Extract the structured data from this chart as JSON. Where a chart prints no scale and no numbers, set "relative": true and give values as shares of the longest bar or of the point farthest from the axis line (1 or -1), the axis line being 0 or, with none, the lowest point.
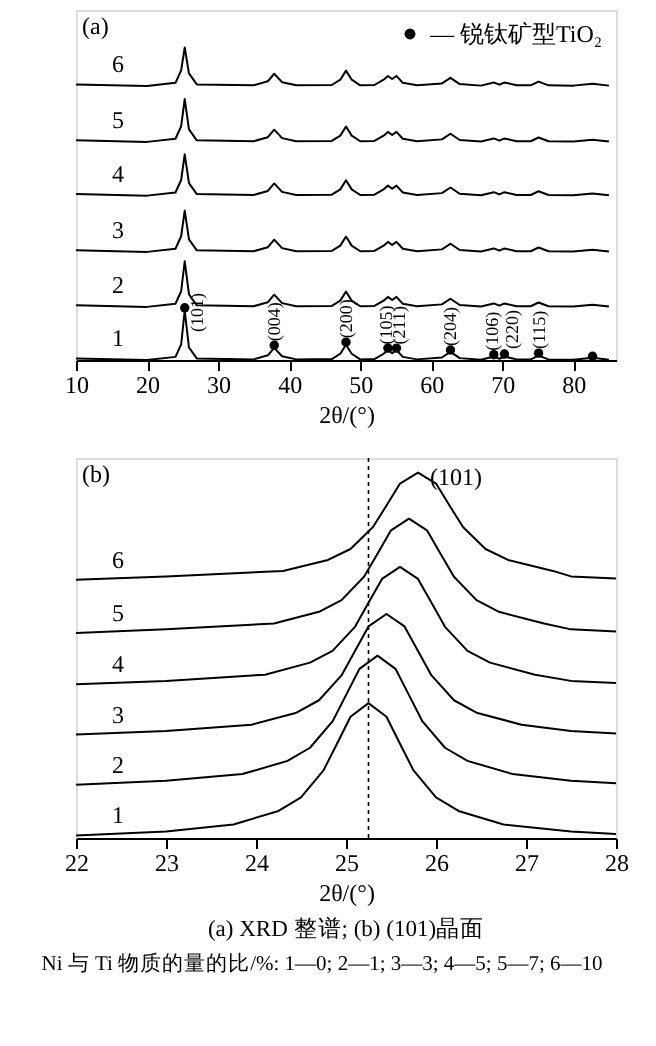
{
  "chart_data": [
    {
      "type": "line",
      "title": "(a)",
      "xlabel": "2θ/(°)",
      "relative": true,
      "xlim": [
        10,
        86
      ],
      "xticks": [
        10,
        20,
        30,
        40,
        50,
        60,
        70,
        80
      ],
      "grid": false,
      "legend": "top right",
      "x": [
        10,
        20,
        24,
        24.8,
        25.3,
        25.9,
        27,
        35,
        37,
        37.9,
        39,
        41,
        46,
        47.2,
        48,
        48.8,
        50,
        52,
        53.3,
        53.9,
        54.5,
        55.1,
        56,
        58,
        61.5,
        62.7,
        64,
        67,
        68.8,
        69.6,
        70.3,
        72,
        74,
        75.1,
        76.5,
        80,
        82.7,
        85
      ],
      "series": [
        {
          "name": "1",
          "color": "#000000",
          "values": [
            0.005,
            0,
            0.01,
            0.05,
            0.158,
            0.04,
            0.005,
            0.002,
            0.015,
            0.039,
            0.012,
            0.002,
            0.003,
            0.02,
            0.049,
            0.02,
            0.002,
            0.003,
            0.02,
            0.032,
            0.022,
            0.032,
            0.01,
            0.002,
            0.008,
            0.026,
            0.006,
            0.001,
            0.011,
            0.004,
            0.011,
            0.002,
            0.002,
            0.014,
            0.002,
            0.001,
            0.007,
            0.001
          ]
        },
        {
          "name": "2",
          "color": "#000000",
          "values": [
            0.175,
            0.17,
            0.18,
            0.22,
            0.316,
            0.21,
            0.175,
            0.172,
            0.185,
            0.209,
            0.182,
            0.172,
            0.173,
            0.19,
            0.219,
            0.19,
            0.172,
            0.173,
            0.19,
            0.202,
            0.192,
            0.202,
            0.18,
            0.172,
            0.178,
            0.196,
            0.176,
            0.171,
            0.181,
            0.174,
            0.181,
            0.172,
            0.172,
            0.184,
            0.172,
            0.171,
            0.177,
            0.171
          ]
        },
        {
          "name": "3",
          "color": "#000000",
          "values": [
            0.351,
            0.346,
            0.356,
            0.396,
            0.478,
            0.386,
            0.351,
            0.348,
            0.361,
            0.385,
            0.358,
            0.348,
            0.349,
            0.366,
            0.395,
            0.366,
            0.348,
            0.349,
            0.366,
            0.378,
            0.368,
            0.378,
            0.356,
            0.348,
            0.354,
            0.372,
            0.352,
            0.347,
            0.357,
            0.35,
            0.357,
            0.348,
            0.348,
            0.36,
            0.348,
            0.347,
            0.353,
            0.347
          ]
        },
        {
          "name": "4",
          "color": "#000000",
          "values": [
            0.531,
            0.526,
            0.536,
            0.576,
            0.658,
            0.566,
            0.531,
            0.528,
            0.541,
            0.565,
            0.538,
            0.528,
            0.529,
            0.546,
            0.575,
            0.546,
            0.528,
            0.529,
            0.546,
            0.558,
            0.548,
            0.558,
            0.536,
            0.528,
            0.534,
            0.552,
            0.532,
            0.527,
            0.537,
            0.53,
            0.537,
            0.528,
            0.528,
            0.54,
            0.528,
            0.527,
            0.533,
            0.527
          ]
        },
        {
          "name": "5",
          "color": "#000000",
          "values": [
            0.703,
            0.698,
            0.708,
            0.748,
            0.835,
            0.738,
            0.703,
            0.7,
            0.713,
            0.737,
            0.71,
            0.7,
            0.701,
            0.718,
            0.747,
            0.718,
            0.7,
            0.701,
            0.718,
            0.73,
            0.72,
            0.73,
            0.708,
            0.7,
            0.706,
            0.724,
            0.704,
            0.699,
            0.709,
            0.702,
            0.709,
            0.7,
            0.7,
            0.712,
            0.7,
            0.699,
            0.705,
            0.699
          ]
        },
        {
          "name": "6",
          "color": "#000000",
          "values": [
            0.882,
            0.877,
            0.887,
            0.927,
            1.0,
            0.917,
            0.882,
            0.879,
            0.892,
            0.916,
            0.889,
            0.879,
            0.88,
            0.897,
            0.926,
            0.897,
            0.879,
            0.88,
            0.897,
            0.909,
            0.899,
            0.909,
            0.887,
            0.879,
            0.885,
            0.903,
            0.883,
            0.878,
            0.888,
            0.881,
            0.888,
            0.879,
            0.879,
            0.891,
            0.879,
            0.878,
            0.884,
            0.878
          ]
        },
        {
          "name": "— 锐钛矿型TiO₂",
          "type": "scatter",
          "marker": "circle",
          "color": "#000000",
          "x": [
            25.3,
            37.9,
            48,
            53.9,
            55.1,
            62.7,
            68.8,
            70.3,
            75.1,
            82.7
          ],
          "values": [
            0.167,
            0.047,
            0.057,
            0.038,
            0.038,
            0.032,
            0.017,
            0.019,
            0.022,
            0.012
          ]
        }
      ],
      "annotations": [
        {
          "text": "(101)",
          "x": 27,
          "y": 0.09
        },
        {
          "text": "(004)",
          "x": 37.9,
          "y": 0.06
        },
        {
          "text": "(200)",
          "x": 48,
          "y": 0.07
        },
        {
          "text": "(105)",
          "x": 53.6,
          "y": 0.05
        },
        {
          "text": "(211)",
          "x": 55.4,
          "y": 0.05
        },
        {
          "text": "(204)",
          "x": 62.7,
          "y": 0.045
        },
        {
          "text": "(106)",
          "x": 68.6,
          "y": 0.03
        },
        {
          "text": "(220)",
          "x": 71.3,
          "y": 0.035
        },
        {
          "text": "(115)",
          "x": 75.1,
          "y": 0.035
        }
      ]
    },
    {
      "type": "line",
      "title": "(b)",
      "xlabel": "2θ/(°)",
      "relative": true,
      "xlim": [
        22,
        28
      ],
      "xticks": [
        22,
        23,
        24,
        25,
        26,
        27,
        28
      ],
      "grid": false,
      "series": [
        {
          "name": "1",
          "color": "#000000",
          "x": [
            22,
            23,
            23.75,
            24.25,
            24.5,
            24.75,
            24.9,
            25.05,
            25.25,
            25.45,
            25.6,
            25.75,
            26,
            26.25,
            26.75,
            27.5,
            28
          ],
          "values": [
            0.007,
            0.018,
            0.037,
            0.074,
            0.111,
            0.185,
            0.258,
            0.332,
            0.369,
            0.332,
            0.258,
            0.185,
            0.111,
            0.074,
            0.037,
            0.018,
            0.011
          ]
        },
        {
          "name": "2",
          "color": "#000000",
          "x": [
            22,
            23,
            23.85,
            24.35,
            24.6,
            24.85,
            25,
            25.15,
            25.35,
            25.55,
            25.7,
            25.85,
            26.1,
            26.35,
            26.85,
            27.5,
            28
          ],
          "values": [
            0.146,
            0.157,
            0.175,
            0.211,
            0.247,
            0.319,
            0.391,
            0.463,
            0.499,
            0.463,
            0.391,
            0.319,
            0.247,
            0.211,
            0.175,
            0.157,
            0.15
          ]
        },
        {
          "name": "3",
          "color": "#000000",
          "x": [
            22,
            23,
            23.95,
            24.45,
            24.7,
            24.95,
            25.1,
            25.25,
            25.45,
            25.65,
            25.8,
            25.95,
            26.2,
            26.45,
            26.95,
            27.5,
            28
          ],
          "values": [
            0.283,
            0.293,
            0.31,
            0.343,
            0.377,
            0.445,
            0.512,
            0.579,
            0.613,
            0.579,
            0.512,
            0.445,
            0.377,
            0.343,
            0.31,
            0.293,
            0.286
          ]
        },
        {
          "name": "4",
          "color": "#000000",
          "x": [
            22,
            23,
            24.1,
            24.6,
            24.85,
            25.1,
            25.25,
            25.4,
            25.6,
            25.8,
            25.95,
            26.1,
            26.35,
            26.6,
            27.1,
            27.5,
            28
          ],
          "values": [
            0.421,
            0.43,
            0.447,
            0.48,
            0.512,
            0.578,
            0.644,
            0.709,
            0.742,
            0.709,
            0.644,
            0.578,
            0.512,
            0.48,
            0.447,
            0.43,
            0.424
          ]
        },
        {
          "name": "5",
          "color": "#000000",
          "x": [
            22,
            23,
            24.2,
            24.7,
            24.95,
            25.2,
            25.35,
            25.5,
            25.7,
            25.9,
            26.05,
            26.2,
            26.45,
            26.7,
            27.2,
            27.5,
            28
          ],
          "values": [
            0.561,
            0.571,
            0.587,
            0.619,
            0.651,
            0.715,
            0.778,
            0.842,
            0.874,
            0.842,
            0.778,
            0.715,
            0.651,
            0.619,
            0.587,
            0.571,
            0.565
          ]
        },
        {
          "name": "6",
          "color": "#000000",
          "x": [
            22,
            23,
            24.3,
            24.8,
            25.05,
            25.3,
            25.45,
            25.6,
            25.8,
            26,
            26.15,
            26.3,
            26.55,
            26.8,
            27.3,
            27.5,
            28
          ],
          "values": [
            0.707,
            0.716,
            0.731,
            0.761,
            0.791,
            0.851,
            0.91,
            0.97,
            1.0,
            0.97,
            0.91,
            0.851,
            0.791,
            0.761,
            0.731,
            0.716,
            0.71
          ]
        }
      ],
      "ref_lines": [
        {
          "axis": "x",
          "value": 25.25,
          "label": null,
          "color": "#000000",
          "line_style": "dotted"
        }
      ],
      "annotations": [
        {
          "text": "(101)",
          "x": 25.8,
          "y": 1.0
        },
        "(a) XRD 整谱; (b) (101)晶面",
        "Ni 与 Ti 物质的量的比/%: 1—0; 2—1; 3—3; 4—5; 5—7; 6—10"
      ]
    }
  ]
}
